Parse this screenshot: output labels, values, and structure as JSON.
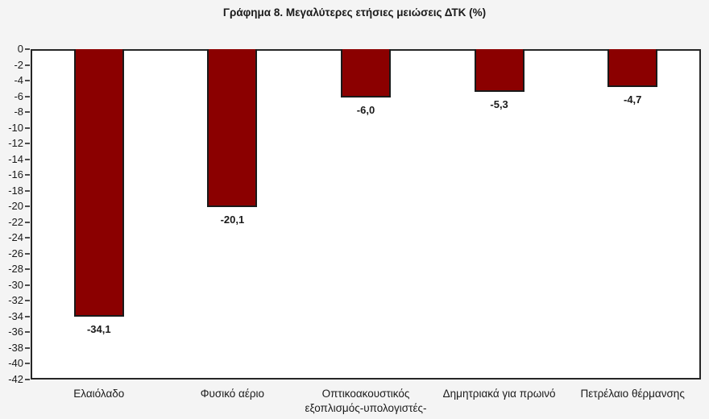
{
  "title": "Γράφημα 8. Μεγαλύτερες ετήσιες μειώσεις ΔΤΚ (%)",
  "chart_data": {
    "type": "bar",
    "title": "Γράφημα 8. Μεγαλύτερες ετήσιες μειώσεις ΔΤΚ (%)",
    "categories": [
      "Ελαιόλαδο",
      "Φυσικό αέριο",
      "Οπτικοακουστικός εξοπλισμός-υπολογιστές-",
      "Δημητριακά για πρωινό",
      "Πετρέλαιο θέρμανσης"
    ],
    "values": [
      -34.1,
      -20.1,
      -6.0,
      -5.3,
      -4.7
    ],
    "data_labels": [
      "-34,1",
      "-20,1",
      "-6,0",
      "-5,3",
      "-4,7"
    ],
    "xlabel": "",
    "ylabel": "",
    "ylim": [
      -42,
      0
    ],
    "ytick_step": 2,
    "ytick_labels": [
      "0",
      "-2",
      "-4",
      "-6",
      "-8",
      "-10",
      "-12",
      "-14",
      "-16",
      "-18",
      "-20",
      "-22",
      "-24",
      "-26",
      "-28",
      "-30",
      "-32",
      "-34",
      "-36",
      "-38",
      "-40",
      "-42"
    ],
    "grid": false,
    "legend": "none",
    "colors": {
      "bar_fill": "#8B0000",
      "bar_border": "#1a1a1a",
      "plot_background": "#ffffff",
      "page_background": "#f4f4f4",
      "frame": "#262626",
      "text": "#1a1a1a"
    }
  }
}
